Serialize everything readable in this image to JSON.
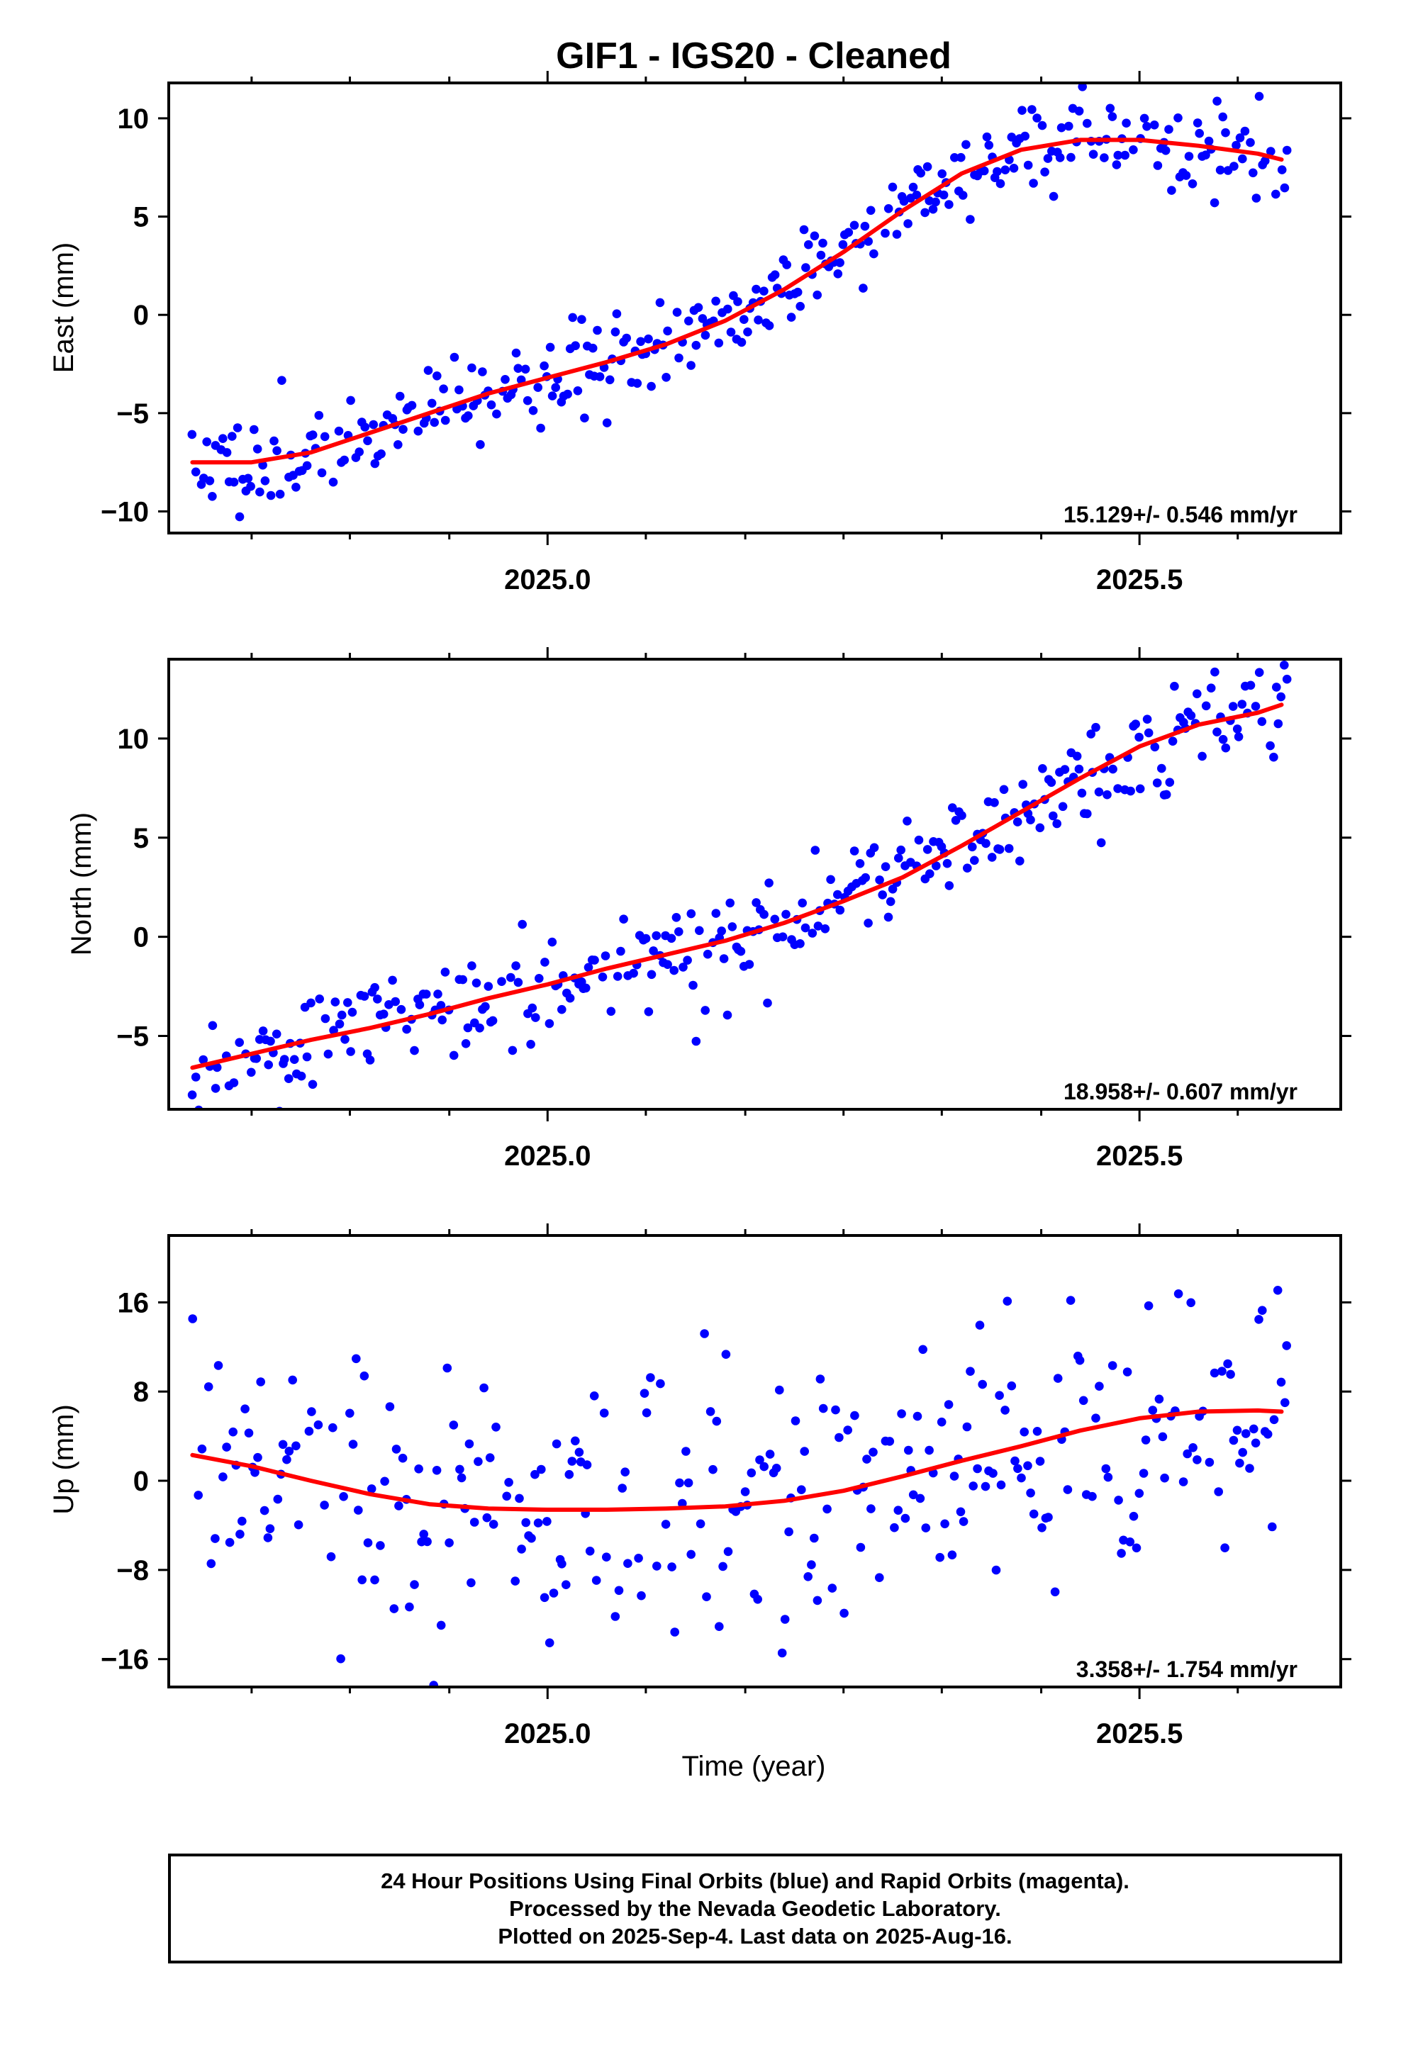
{
  "title": "GIF1  - IGS20 - Cleaned",
  "colors": {
    "points": "#0000ff",
    "fit": "#ff0000",
    "frame": "#000000"
  },
  "footer": {
    "line1": "24 Hour Positions Using Final Orbits (blue) and Rapid Orbits (magenta).",
    "line2": "Processed by the Nevada Geodetic Laboratory.",
    "line3": "Plotted on 2025-Sep-4. Last data on 2025-Aug-16."
  },
  "chart_data": [
    {
      "type": "scatter",
      "ylabel": "East (mm)",
      "xlabel": "",
      "xlim": [
        2024.68,
        2025.67
      ],
      "ylim": [
        -11.1,
        11.8
      ],
      "xticks": [
        2025.0,
        2025.5
      ],
      "xtick_labels": [
        "2025.0",
        "2025.5"
      ],
      "yticks": [
        -10,
        -5,
        0,
        5,
        10
      ],
      "ytick_labels": [
        "−10",
        "−5",
        "0",
        "5",
        "10"
      ],
      "rate_label": "15.129+/- 0.546 mm/yr",
      "fit": {
        "x": [
          2024.7,
          2024.75,
          2024.8,
          2024.85,
          2024.9,
          2024.95,
          2025.0,
          2025.05,
          2025.1,
          2025.15,
          2025.2,
          2025.25,
          2025.3,
          2025.35,
          2025.4,
          2025.45,
          2025.5,
          2025.55,
          2025.6,
          2025.62
        ],
        "y": [
          -7.5,
          -7.5,
          -7.0,
          -6.0,
          -5.0,
          -4.0,
          -3.2,
          -2.4,
          -1.5,
          -0.3,
          1.3,
          3.2,
          5.3,
          7.2,
          8.4,
          8.9,
          8.9,
          8.6,
          8.2,
          7.9
        ]
      },
      "points": {
        "n": 390,
        "x0": 2024.7,
        "x1": 2025.625,
        "scatter": 1.1,
        "seed": 11
      }
    },
    {
      "type": "scatter",
      "ylabel": "North (mm)",
      "xlabel": "",
      "xlim": [
        2024.68,
        2025.67
      ],
      "ylim": [
        -8.7,
        14.0
      ],
      "xticks": [
        2025.0,
        2025.5
      ],
      "xtick_labels": [
        "2025.0",
        "2025.5"
      ],
      "yticks": [
        -5,
        0,
        5,
        10
      ],
      "ytick_labels": [
        "−5",
        "0",
        "5",
        "10"
      ],
      "rate_label": "18.958+/- 0.607 mm/yr",
      "fit": {
        "x": [
          2024.7,
          2024.75,
          2024.8,
          2024.85,
          2024.9,
          2024.95,
          2025.0,
          2025.05,
          2025.1,
          2025.15,
          2025.2,
          2025.25,
          2025.3,
          2025.35,
          2025.4,
          2025.45,
          2025.5,
          2025.55,
          2025.6,
          2025.62
        ],
        "y": [
          -6.6,
          -5.9,
          -5.2,
          -4.6,
          -3.9,
          -3.1,
          -2.4,
          -1.6,
          -0.9,
          -0.2,
          0.7,
          1.8,
          3.0,
          4.6,
          6.3,
          8.0,
          9.6,
          10.7,
          11.3,
          11.7
        ]
      },
      "points": {
        "n": 390,
        "x0": 2024.7,
        "x1": 2025.625,
        "scatter": 1.3,
        "seed": 23
      }
    },
    {
      "type": "scatter",
      "ylabel": "Up (mm)",
      "xlabel": "Time (year)",
      "xlim": [
        2024.68,
        2025.67
      ],
      "ylim": [
        -18.5,
        22.0
      ],
      "xticks": [
        2025.0,
        2025.5
      ],
      "xtick_labels": [
        "2025.0",
        "2025.5"
      ],
      "yticks": [
        -16,
        -8,
        0,
        8,
        16
      ],
      "ytick_labels": [
        "−16",
        "−8",
        "0",
        "8",
        "16"
      ],
      "rate_label": "3.358+/- 1.754 mm/yr",
      "fit": {
        "x": [
          2024.7,
          2024.75,
          2024.8,
          2024.85,
          2024.9,
          2024.95,
          2025.0,
          2025.05,
          2025.1,
          2025.15,
          2025.2,
          2025.25,
          2025.3,
          2025.35,
          2025.4,
          2025.45,
          2025.5,
          2025.55,
          2025.6,
          2025.62
        ],
        "y": [
          2.3,
          1.3,
          0.0,
          -1.2,
          -2.1,
          -2.5,
          -2.6,
          -2.6,
          -2.5,
          -2.3,
          -1.8,
          -0.9,
          0.4,
          1.8,
          3.1,
          4.5,
          5.6,
          6.2,
          6.3,
          6.2
        ]
      },
      "points": {
        "n": 350,
        "x0": 2024.7,
        "x1": 2025.625,
        "scatter": 6.5,
        "seed": 37
      }
    }
  ]
}
